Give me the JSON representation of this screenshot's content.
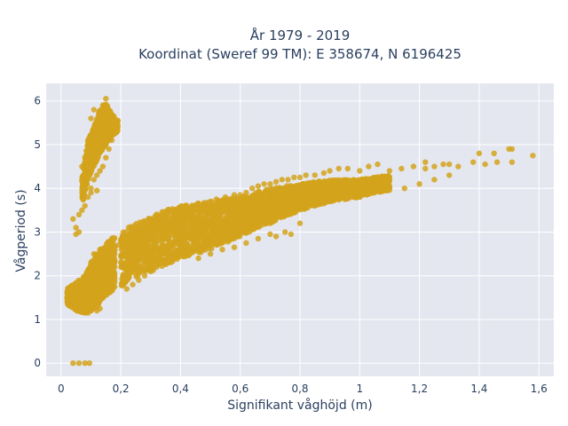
{
  "chart_data": {
    "type": "scatter",
    "title_line1": "År 1979 - 2019",
    "title_line2": "Koordinat (Sweref 99 TM): E 358674, N 6196425",
    "xlabel": "Signifikant våghöjd (m)",
    "ylabel": "Vågperiod (s)",
    "xlim": [
      -0.05,
      1.65
    ],
    "ylim": [
      -0.3,
      6.4
    ],
    "x_ticks": [
      0,
      0.2,
      0.4,
      0.6,
      0.8,
      1,
      1.2,
      1.4,
      1.6
    ],
    "x_tick_labels": [
      "0",
      "0,2",
      "0,4",
      "0,6",
      "0,8",
      "1",
      "1,2",
      "1,4",
      "1,6"
    ],
    "y_ticks": [
      0,
      1,
      2,
      3,
      4,
      5,
      6
    ],
    "y_tick_labels": [
      "0",
      "1",
      "2",
      "3",
      "4",
      "5",
      "6"
    ],
    "grid": true,
    "marker_color": "#d4a31c",
    "background_color": "#e5e7f0",
    "series": [
      {
        "points": [
          [
            0.04,
            0.0
          ],
          [
            0.06,
            0.0
          ],
          [
            0.08,
            0.0
          ],
          [
            0.095,
            0.0
          ],
          [
            0.02,
            1.5
          ],
          [
            0.03,
            1.55
          ],
          [
            0.025,
            1.45
          ],
          [
            0.04,
            1.6
          ],
          [
            0.05,
            1.4
          ],
          [
            0.06,
            1.3
          ],
          [
            0.05,
            1.7
          ],
          [
            0.07,
            1.2
          ],
          [
            0.08,
            1.25
          ],
          [
            0.09,
            1.15
          ],
          [
            0.1,
            1.2
          ],
          [
            0.12,
            1.2
          ],
          [
            0.13,
            1.25
          ],
          [
            0.07,
            1.8
          ],
          [
            0.08,
            1.9
          ],
          [
            0.09,
            2.0
          ],
          [
            0.1,
            2.1
          ],
          [
            0.1,
            2.3
          ],
          [
            0.11,
            2.5
          ],
          [
            0.12,
            2.4
          ],
          [
            0.13,
            2.6
          ],
          [
            0.11,
            2.2
          ],
          [
            0.12,
            1.9
          ],
          [
            0.14,
            2.1
          ],
          [
            0.15,
            2.0
          ],
          [
            0.16,
            2.5
          ],
          [
            0.17,
            2.3
          ],
          [
            0.18,
            2.6
          ],
          [
            0.19,
            2.7
          ],
          [
            0.2,
            2.8
          ],
          [
            0.22,
            2.9
          ],
          [
            0.24,
            3.0
          ],
          [
            0.26,
            3.1
          ],
          [
            0.28,
            3.2
          ],
          [
            0.3,
            3.3
          ],
          [
            0.32,
            3.35
          ],
          [
            0.35,
            3.4
          ],
          [
            0.38,
            3.5
          ],
          [
            0.4,
            3.55
          ],
          [
            0.42,
            3.6
          ],
          [
            0.45,
            3.6
          ],
          [
            0.48,
            3.65
          ],
          [
            0.5,
            3.7
          ],
          [
            0.52,
            3.75
          ],
          [
            0.55,
            3.8
          ],
          [
            0.58,
            3.85
          ],
          [
            0.6,
            3.85
          ],
          [
            0.62,
            3.9
          ],
          [
            0.64,
            4.0
          ],
          [
            0.66,
            4.05
          ],
          [
            0.68,
            4.1
          ],
          [
            0.7,
            4.1
          ],
          [
            0.72,
            4.15
          ],
          [
            0.74,
            4.2
          ],
          [
            0.76,
            4.2
          ],
          [
            0.78,
            4.25
          ],
          [
            0.8,
            4.25
          ],
          [
            0.82,
            4.3
          ],
          [
            0.85,
            4.3
          ],
          [
            0.88,
            4.35
          ],
          [
            0.9,
            4.4
          ],
          [
            0.93,
            4.45
          ],
          [
            0.96,
            4.45
          ],
          [
            1.0,
            4.4
          ],
          [
            1.03,
            4.5
          ],
          [
            1.06,
            4.55
          ],
          [
            1.1,
            4.4
          ],
          [
            1.14,
            4.45
          ],
          [
            1.18,
            4.5
          ],
          [
            1.22,
            4.45
          ],
          [
            1.25,
            4.5
          ],
          [
            1.28,
            4.55
          ],
          [
            1.3,
            4.55
          ],
          [
            1.33,
            4.5
          ],
          [
            1.38,
            4.6
          ],
          [
            1.42,
            4.55
          ],
          [
            1.46,
            4.6
          ],
          [
            1.5,
            4.9
          ],
          [
            1.51,
            4.9
          ],
          [
            1.4,
            4.8
          ],
          [
            1.45,
            4.8
          ],
          [
            1.51,
            4.6
          ],
          [
            1.58,
            4.75
          ],
          [
            1.22,
            4.6
          ],
          [
            0.22,
            1.7
          ],
          [
            0.24,
            1.8
          ],
          [
            0.26,
            1.9
          ],
          [
            0.28,
            2.0
          ],
          [
            0.3,
            2.1
          ],
          [
            0.32,
            2.2
          ],
          [
            0.35,
            2.3
          ],
          [
            0.38,
            2.4
          ],
          [
            0.4,
            2.5
          ],
          [
            0.42,
            2.55
          ],
          [
            0.45,
            2.6
          ],
          [
            0.48,
            2.7
          ],
          [
            0.5,
            2.75
          ],
          [
            0.52,
            2.8
          ],
          [
            0.55,
            2.9
          ],
          [
            0.58,
            3.0
          ],
          [
            0.6,
            3.05
          ],
          [
            0.62,
            3.1
          ],
          [
            0.65,
            3.2
          ],
          [
            0.68,
            3.25
          ],
          [
            0.7,
            3.3
          ],
          [
            0.72,
            3.35
          ],
          [
            0.75,
            3.4
          ],
          [
            0.78,
            3.5
          ],
          [
            0.8,
            3.55
          ],
          [
            0.85,
            3.6
          ],
          [
            0.88,
            3.65
          ],
          [
            0.9,
            3.7
          ],
          [
            0.95,
            3.75
          ],
          [
            1.0,
            3.8
          ],
          [
            1.05,
            3.9
          ],
          [
            1.1,
            4.0
          ],
          [
            1.15,
            4.0
          ],
          [
            1.2,
            4.1
          ],
          [
            1.25,
            4.2
          ],
          [
            1.3,
            4.3
          ],
          [
            0.72,
            2.9
          ],
          [
            0.77,
            2.95
          ],
          [
            0.75,
            3.0
          ],
          [
            0.8,
            3.2
          ],
          [
            0.7,
            2.95
          ],
          [
            0.66,
            2.85
          ],
          [
            0.62,
            2.75
          ],
          [
            0.58,
            2.65
          ],
          [
            0.54,
            2.6
          ],
          [
            0.5,
            2.5
          ],
          [
            0.46,
            2.4
          ],
          [
            0.04,
            3.3
          ],
          [
            0.06,
            3.0
          ],
          [
            0.05,
            2.95
          ],
          [
            0.05,
            3.1
          ],
          [
            0.06,
            3.4
          ],
          [
            0.07,
            3.5
          ],
          [
            0.08,
            3.6
          ],
          [
            0.09,
            3.8
          ],
          [
            0.1,
            3.9
          ],
          [
            0.08,
            4.1
          ],
          [
            0.09,
            4.3
          ],
          [
            0.07,
            4.5
          ],
          [
            0.08,
            4.7
          ],
          [
            0.09,
            4.9
          ],
          [
            0.1,
            5.0
          ],
          [
            0.11,
            5.2
          ],
          [
            0.12,
            5.4
          ],
          [
            0.13,
            5.5
          ],
          [
            0.14,
            5.6
          ],
          [
            0.15,
            5.7
          ],
          [
            0.14,
            5.9
          ],
          [
            0.15,
            6.05
          ],
          [
            0.16,
            5.3
          ],
          [
            0.18,
            5.5
          ],
          [
            0.19,
            5.55
          ],
          [
            0.17,
            5.1
          ],
          [
            0.16,
            4.9
          ],
          [
            0.15,
            4.7
          ],
          [
            0.14,
            4.5
          ],
          [
            0.13,
            4.4
          ],
          [
            0.12,
            4.3
          ],
          [
            0.11,
            4.2
          ],
          [
            0.1,
            4.0
          ],
          [
            0.12,
            3.95
          ],
          [
            0.11,
            4.6
          ],
          [
            0.1,
            4.8
          ],
          [
            0.12,
            5.0
          ],
          [
            0.13,
            5.1
          ],
          [
            0.1,
            5.6
          ],
          [
            0.11,
            5.8
          ]
        ]
      }
    ],
    "dense_bands": [
      {
        "name": "low-cluster",
        "segments": [
          [
            0.02,
            1.35,
            1.7
          ],
          [
            0.05,
            1.2,
            1.85
          ],
          [
            0.08,
            1.15,
            2.0
          ],
          [
            0.1,
            1.2,
            2.3
          ],
          [
            0.12,
            1.3,
            2.55
          ],
          [
            0.14,
            1.5,
            2.65
          ],
          [
            0.16,
            1.6,
            2.8
          ],
          [
            0.18,
            1.7,
            2.9
          ]
        ]
      },
      {
        "name": "main-band",
        "segments": [
          [
            0.2,
            1.75,
            3.0
          ],
          [
            0.25,
            1.95,
            3.2
          ],
          [
            0.3,
            2.1,
            3.35
          ],
          [
            0.35,
            2.25,
            3.5
          ],
          [
            0.4,
            2.4,
            3.6
          ],
          [
            0.45,
            2.5,
            3.65
          ],
          [
            0.5,
            2.6,
            3.7
          ],
          [
            0.55,
            2.75,
            3.75
          ],
          [
            0.6,
            2.9,
            3.8
          ],
          [
            0.65,
            3.05,
            3.9
          ],
          [
            0.7,
            3.2,
            4.0
          ],
          [
            0.75,
            3.35,
            4.05
          ],
          [
            0.8,
            3.5,
            4.1
          ],
          [
            0.85,
            3.6,
            4.15
          ],
          [
            0.9,
            3.7,
            4.2
          ],
          [
            0.95,
            3.75,
            4.2
          ],
          [
            1.0,
            3.8,
            4.2
          ],
          [
            1.05,
            3.9,
            4.25
          ],
          [
            1.1,
            3.95,
            4.3
          ]
        ]
      },
      {
        "name": "upper-spike",
        "segments": [
          [
            0.07,
            3.6,
            4.2
          ],
          [
            0.09,
            4.2,
            5.1
          ],
          [
            0.11,
            4.5,
            5.4
          ],
          [
            0.13,
            4.8,
            5.8
          ],
          [
            0.15,
            5.0,
            5.95
          ],
          [
            0.17,
            5.2,
            5.7
          ],
          [
            0.19,
            5.3,
            5.55
          ]
        ]
      }
    ]
  }
}
